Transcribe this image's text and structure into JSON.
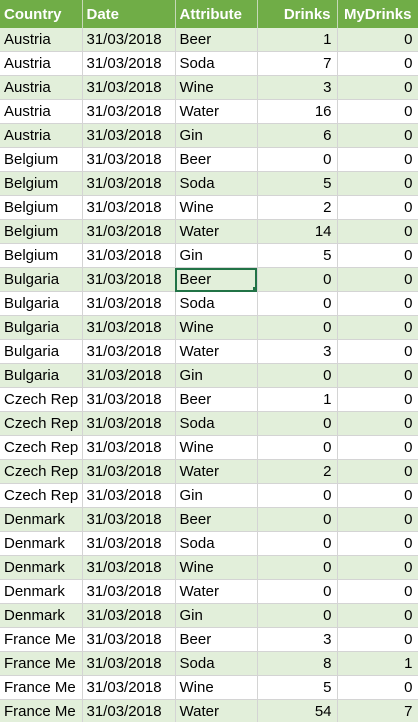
{
  "columns": [
    "Country",
    "Date",
    "Attribute",
    "Drinks",
    "MyDrinks"
  ],
  "rows": [
    [
      "Austria",
      "31/03/2018",
      "Beer",
      "1",
      "0"
    ],
    [
      "Austria",
      "31/03/2018",
      "Soda",
      "7",
      "0"
    ],
    [
      "Austria",
      "31/03/2018",
      "Wine",
      "3",
      "0"
    ],
    [
      "Austria",
      "31/03/2018",
      "Water",
      "16",
      "0"
    ],
    [
      "Austria",
      "31/03/2018",
      "Gin",
      "6",
      "0"
    ],
    [
      "Belgium",
      "31/03/2018",
      "Beer",
      "0",
      "0"
    ],
    [
      "Belgium",
      "31/03/2018",
      "Soda",
      "5",
      "0"
    ],
    [
      "Belgium",
      "31/03/2018",
      "Wine",
      "2",
      "0"
    ],
    [
      "Belgium",
      "31/03/2018",
      "Water",
      "14",
      "0"
    ],
    [
      "Belgium",
      "31/03/2018",
      "Gin",
      "5",
      "0"
    ],
    [
      "Bulgaria",
      "31/03/2018",
      "Beer",
      "0",
      "0"
    ],
    [
      "Bulgaria",
      "31/03/2018",
      "Soda",
      "0",
      "0"
    ],
    [
      "Bulgaria",
      "31/03/2018",
      "Wine",
      "0",
      "0"
    ],
    [
      "Bulgaria",
      "31/03/2018",
      "Water",
      "3",
      "0"
    ],
    [
      "Bulgaria",
      "31/03/2018",
      "Gin",
      "0",
      "0"
    ],
    [
      "Czech Rep",
      "31/03/2018",
      "Beer",
      "1",
      "0"
    ],
    [
      "Czech Rep",
      "31/03/2018",
      "Soda",
      "0",
      "0"
    ],
    [
      "Czech Rep",
      "31/03/2018",
      "Wine",
      "0",
      "0"
    ],
    [
      "Czech Rep",
      "31/03/2018",
      "Water",
      "2",
      "0"
    ],
    [
      "Czech Rep",
      "31/03/2018",
      "Gin",
      "0",
      "0"
    ],
    [
      "Denmark",
      "31/03/2018",
      "Beer",
      "0",
      "0"
    ],
    [
      "Denmark",
      "31/03/2018",
      "Soda",
      "0",
      "0"
    ],
    [
      "Denmark",
      "31/03/2018",
      "Wine",
      "0",
      "0"
    ],
    [
      "Denmark",
      "31/03/2018",
      "Water",
      "0",
      "0"
    ],
    [
      "Denmark",
      "31/03/2018",
      "Gin",
      "0",
      "0"
    ],
    [
      "France Me",
      "31/03/2018",
      "Beer",
      "3",
      "0"
    ],
    [
      "France Me",
      "31/03/2018",
      "Soda",
      "8",
      "1"
    ],
    [
      "France Me",
      "31/03/2018",
      "Wine",
      "5",
      "0"
    ],
    [
      "France Me",
      "31/03/2018",
      "Water",
      "54",
      "7"
    ]
  ],
  "selected_cell": {
    "row": 10,
    "col": 2
  },
  "colors": {
    "header_bg": "#70ad47",
    "band_bg": "#e2efda",
    "selection": "#217346"
  }
}
